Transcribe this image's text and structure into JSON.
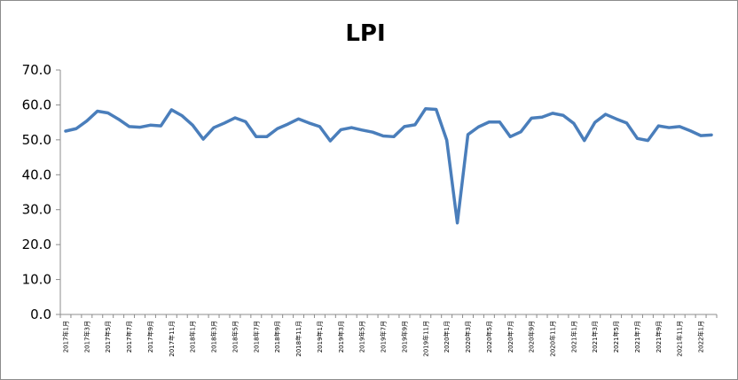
{
  "chart_data": {
    "type": "line",
    "title": "LPI",
    "xlabel": "",
    "ylabel": "",
    "ylim": [
      0,
      70
    ],
    "yticks": [
      "0.0",
      "10.0",
      "20.0",
      "30.0",
      "40.0",
      "50.0",
      "60.0",
      "70.0"
    ],
    "grid": false,
    "legend": "none",
    "line_color": "#4a7ebb",
    "x_tick_labels": [
      "2017年1月",
      "2017年3月",
      "2017年5月",
      "2017年7月",
      "2017年9月",
      "2017年11月",
      "2018年1月",
      "2018年3月",
      "2018年5月",
      "2018年7月",
      "2018年9月",
      "2018年11月",
      "2019年1月",
      "2019年3月",
      "2019年5月",
      "2019年7月",
      "2019年9月",
      "2019年11月",
      "2020年1月",
      "2020年3月",
      "2020年5月",
      "2020年7月",
      "2020年9月",
      "2020年11月",
      "2021年1月",
      "2021年3月",
      "2021年5月",
      "2021年7月",
      "2021年9月",
      "2021年11月",
      "2022年1月"
    ],
    "series": [
      {
        "values": [
          52.5,
          53.2,
          55.4,
          58.2,
          57.7,
          55.9,
          53.8,
          53.6,
          54.2,
          54.0,
          58.6,
          56.9,
          54.2,
          50.2,
          53.5,
          54.8,
          56.3,
          55.2,
          50.9,
          50.9,
          53.2,
          54.5,
          56.0,
          54.8,
          53.8,
          49.7,
          52.9,
          53.5,
          52.8,
          52.2,
          51.1,
          50.9,
          53.8,
          54.3,
          58.9,
          58.7,
          49.9,
          26.2,
          51.5,
          53.7,
          55.1,
          55.1,
          50.9,
          52.3,
          56.2,
          56.5,
          57.6,
          57.0,
          54.7,
          49.8,
          55.0,
          57.3,
          56.0,
          54.8,
          50.4,
          49.8,
          54.0,
          53.5,
          53.8,
          52.6,
          51.2,
          51.4
        ]
      }
    ]
  }
}
